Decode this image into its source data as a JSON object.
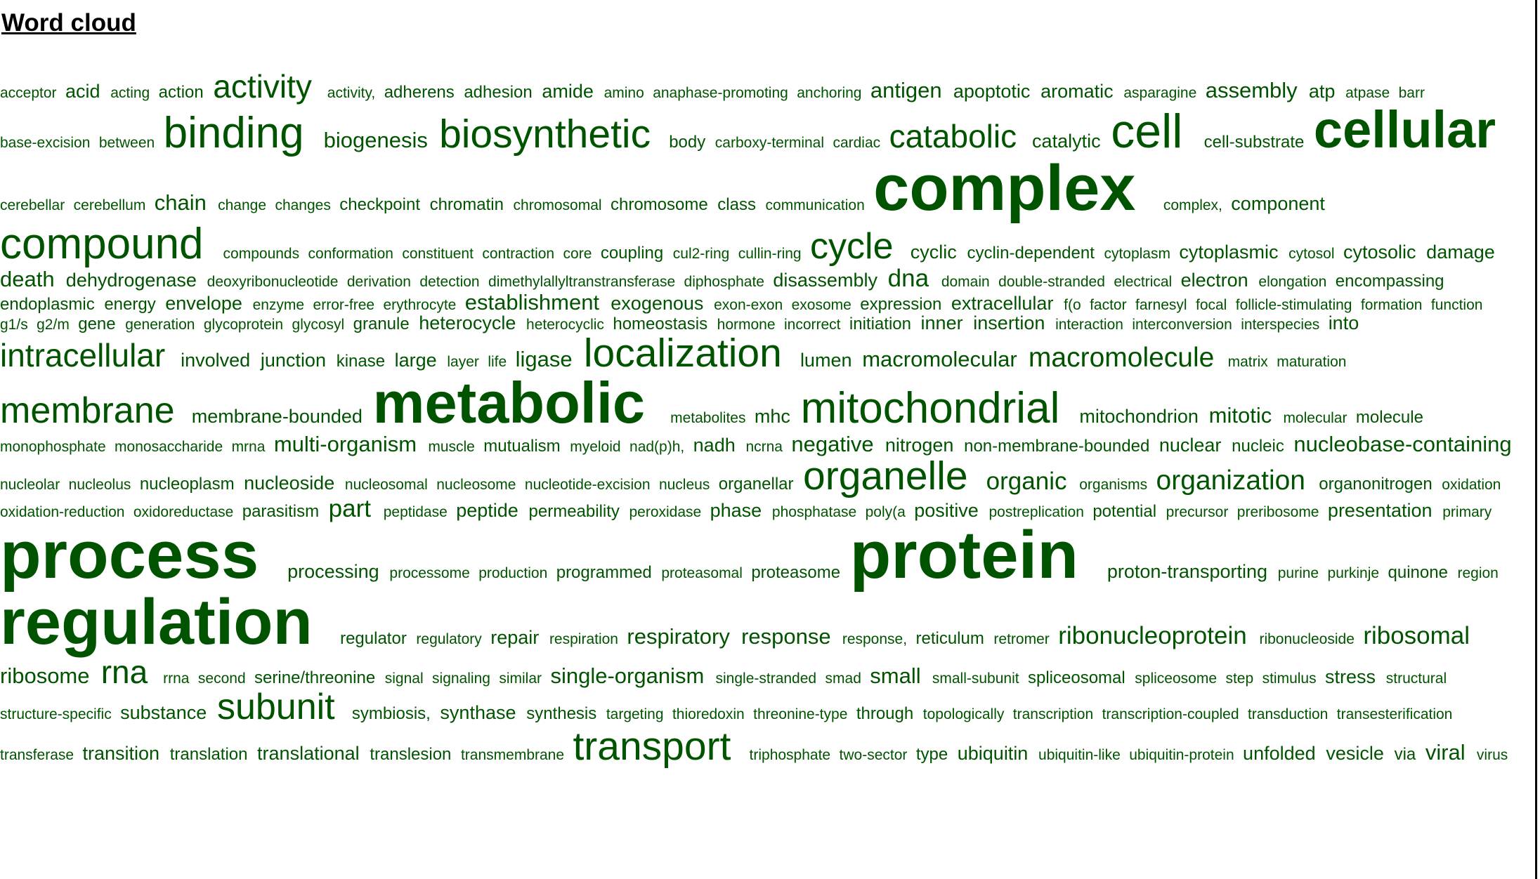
{
  "title": "Word cloud",
  "word_color": "#005400",
  "words": [
    {
      "t": "acceptor",
      "w": 1
    },
    {
      "t": "acid",
      "w": 3
    },
    {
      "t": "acting",
      "w": 1
    },
    {
      "t": "action",
      "w": 2
    },
    {
      "t": "activity",
      "w": 7
    },
    {
      "t": "activity,",
      "w": 1
    },
    {
      "t": "adherens",
      "w": 2
    },
    {
      "t": "adhesion",
      "w": 2
    },
    {
      "t": "amide",
      "w": 3
    },
    {
      "t": "amino",
      "w": 1
    },
    {
      "t": "anaphase-promoting",
      "w": 1
    },
    {
      "t": "anchoring",
      "w": 1
    },
    {
      "t": "antigen",
      "w": 4
    },
    {
      "t": "apoptotic",
      "w": 3
    },
    {
      "t": "aromatic",
      "w": 3
    },
    {
      "t": "asparagine",
      "w": 1
    },
    {
      "t": "assembly",
      "w": 4
    },
    {
      "t": "atp",
      "w": 3
    },
    {
      "t": "atpase",
      "w": 1
    },
    {
      "t": "barr",
      "w": 1
    },
    {
      "t": "base-excision",
      "w": 1
    },
    {
      "t": "between",
      "w": 1
    },
    {
      "t": "binding",
      "w": 10
    },
    {
      "t": "biogenesis",
      "w": 4
    },
    {
      "t": "biosynthetic",
      "w": 9
    },
    {
      "t": "body",
      "w": 2
    },
    {
      "t": "carboxy-terminal",
      "w": 1
    },
    {
      "t": "cardiac",
      "w": 1
    },
    {
      "t": "catabolic",
      "w": 7
    },
    {
      "t": "catalytic",
      "w": 3
    },
    {
      "t": "cell",
      "w": 11
    },
    {
      "t": "cell-substrate",
      "w": 2
    },
    {
      "t": "cellular",
      "w": 12
    },
    {
      "t": "cerebellar",
      "w": 1
    },
    {
      "t": "cerebellum",
      "w": 1
    },
    {
      "t": "chain",
      "w": 4
    },
    {
      "t": "change",
      "w": 1
    },
    {
      "t": "changes",
      "w": 1
    },
    {
      "t": "checkpoint",
      "w": 2
    },
    {
      "t": "chromatin",
      "w": 2
    },
    {
      "t": "chromosomal",
      "w": 1
    },
    {
      "t": "chromosome",
      "w": 2
    },
    {
      "t": "class",
      "w": 2
    },
    {
      "t": "communication",
      "w": 1
    },
    {
      "t": "complex",
      "w": 14
    },
    {
      "t": "complex,",
      "w": 1
    },
    {
      "t": "component",
      "w": 3
    },
    {
      "t": "compound",
      "w": 10
    },
    {
      "t": "compounds",
      "w": 1
    },
    {
      "t": "conformation",
      "w": 1
    },
    {
      "t": "constituent",
      "w": 1
    },
    {
      "t": "contraction",
      "w": 1
    },
    {
      "t": "core",
      "w": 1
    },
    {
      "t": "coupling",
      "w": 2
    },
    {
      "t": "cul2-ring",
      "w": 1
    },
    {
      "t": "cullin-ring",
      "w": 1
    },
    {
      "t": "cycle",
      "w": 8
    },
    {
      "t": "cyclic",
      "w": 3
    },
    {
      "t": "cyclin-dependent",
      "w": 2
    },
    {
      "t": "cytoplasm",
      "w": 1
    },
    {
      "t": "cytoplasmic",
      "w": 3
    },
    {
      "t": "cytosol",
      "w": 1
    },
    {
      "t": "cytosolic",
      "w": 3
    },
    {
      "t": "damage",
      "w": 3
    },
    {
      "t": "death",
      "w": 4
    },
    {
      "t": "dehydrogenase",
      "w": 3
    },
    {
      "t": "deoxyribonucleotide",
      "w": 1
    },
    {
      "t": "derivation",
      "w": 1
    },
    {
      "t": "detection",
      "w": 1
    },
    {
      "t": "dimethylallyltranstransferase",
      "w": 1
    },
    {
      "t": "diphosphate",
      "w": 1
    },
    {
      "t": "disassembly",
      "w": 3
    },
    {
      "t": "dna",
      "w": 5
    },
    {
      "t": "domain",
      "w": 1
    },
    {
      "t": "double-stranded",
      "w": 1
    },
    {
      "t": "electrical",
      "w": 1
    },
    {
      "t": "electron",
      "w": 3
    },
    {
      "t": "elongation",
      "w": 1
    },
    {
      "t": "encompassing",
      "w": 2
    },
    {
      "t": "endoplasmic",
      "w": 2
    },
    {
      "t": "energy",
      "w": 2
    },
    {
      "t": "envelope",
      "w": 3
    },
    {
      "t": "enzyme",
      "w": 1
    },
    {
      "t": "error-free",
      "w": 1
    },
    {
      "t": "erythrocyte",
      "w": 1
    },
    {
      "t": "establishment",
      "w": 4
    },
    {
      "t": "exogenous",
      "w": 3
    },
    {
      "t": "exon-exon",
      "w": 1
    },
    {
      "t": "exosome",
      "w": 1
    },
    {
      "t": "expression",
      "w": 2
    },
    {
      "t": "extracellular",
      "w": 3
    },
    {
      "t": "f(o",
      "w": 1
    },
    {
      "t": "factor",
      "w": 1
    },
    {
      "t": "farnesyl",
      "w": 1
    },
    {
      "t": "focal",
      "w": 1
    },
    {
      "t": "follicle-stimulating",
      "w": 1
    },
    {
      "t": "formation",
      "w": 1
    },
    {
      "t": "function",
      "w": 1
    },
    {
      "t": "g1/s",
      "w": 1
    },
    {
      "t": "g2/m",
      "w": 1
    },
    {
      "t": "gene",
      "w": 2
    },
    {
      "t": "generation",
      "w": 1
    },
    {
      "t": "glycoprotein",
      "w": 1
    },
    {
      "t": "glycosyl",
      "w": 1
    },
    {
      "t": "granule",
      "w": 2
    },
    {
      "t": "heterocycle",
      "w": 3
    },
    {
      "t": "heterocyclic",
      "w": 1
    },
    {
      "t": "homeostasis",
      "w": 2
    },
    {
      "t": "hormone",
      "w": 1
    },
    {
      "t": "incorrect",
      "w": 1
    },
    {
      "t": "initiation",
      "w": 2
    },
    {
      "t": "inner",
      "w": 3
    },
    {
      "t": "insertion",
      "w": 3
    },
    {
      "t": "interaction",
      "w": 1
    },
    {
      "t": "interconversion",
      "w": 1
    },
    {
      "t": "interspecies",
      "w": 1
    },
    {
      "t": "into",
      "w": 3
    },
    {
      "t": "intracellular",
      "w": 7
    },
    {
      "t": "involved",
      "w": 3
    },
    {
      "t": "junction",
      "w": 3
    },
    {
      "t": "kinase",
      "w": 2
    },
    {
      "t": "large",
      "w": 3
    },
    {
      "t": "layer",
      "w": 1
    },
    {
      "t": "life",
      "w": 1
    },
    {
      "t": "ligase",
      "w": 4
    },
    {
      "t": "localization",
      "w": 9
    },
    {
      "t": "lumen",
      "w": 3
    },
    {
      "t": "macromolecular",
      "w": 4
    },
    {
      "t": "macromolecule",
      "w": 6
    },
    {
      "t": "matrix",
      "w": 1
    },
    {
      "t": "maturation",
      "w": 1
    },
    {
      "t": "membrane",
      "w": 8
    },
    {
      "t": "membrane-bounded",
      "w": 3
    },
    {
      "t": "metabolic",
      "w": 13
    },
    {
      "t": "metabolites",
      "w": 1
    },
    {
      "t": "mhc",
      "w": 3
    },
    {
      "t": "mitochondrial",
      "w": 10
    },
    {
      "t": "mitochondrion",
      "w": 3
    },
    {
      "t": "mitotic",
      "w": 4
    },
    {
      "t": "molecular",
      "w": 1
    },
    {
      "t": "molecule",
      "w": 2
    },
    {
      "t": "monophosphate",
      "w": 1
    },
    {
      "t": "monosaccharide",
      "w": 1
    },
    {
      "t": "mrna",
      "w": 1
    },
    {
      "t": "multi-organism",
      "w": 4
    },
    {
      "t": "muscle",
      "w": 1
    },
    {
      "t": "mutualism",
      "w": 2
    },
    {
      "t": "myeloid",
      "w": 1
    },
    {
      "t": "nad(p)h,",
      "w": 1
    },
    {
      "t": "nadh",
      "w": 3
    },
    {
      "t": "ncrna",
      "w": 1
    },
    {
      "t": "negative",
      "w": 4
    },
    {
      "t": "nitrogen",
      "w": 3
    },
    {
      "t": "non-membrane-bounded",
      "w": 2
    },
    {
      "t": "nuclear",
      "w": 3
    },
    {
      "t": "nucleic",
      "w": 2
    },
    {
      "t": "nucleobase-containing",
      "w": 4
    },
    {
      "t": "nucleolar",
      "w": 1
    },
    {
      "t": "nucleolus",
      "w": 1
    },
    {
      "t": "nucleoplasm",
      "w": 2
    },
    {
      "t": "nucleoside",
      "w": 3
    },
    {
      "t": "nucleosomal",
      "w": 1
    },
    {
      "t": "nucleosome",
      "w": 1
    },
    {
      "t": "nucleotide-excision",
      "w": 1
    },
    {
      "t": "nucleus",
      "w": 1
    },
    {
      "t": "organellar",
      "w": 2
    },
    {
      "t": "organelle",
      "w": 9
    },
    {
      "t": "organic",
      "w": 5
    },
    {
      "t": "organisms",
      "w": 1
    },
    {
      "t": "organization",
      "w": 6
    },
    {
      "t": "organonitrogen",
      "w": 2
    },
    {
      "t": "oxidation",
      "w": 1
    },
    {
      "t": "oxidation-reduction",
      "w": 1
    },
    {
      "t": "oxidoreductase",
      "w": 1
    },
    {
      "t": "parasitism",
      "w": 2
    },
    {
      "t": "part",
      "w": 5
    },
    {
      "t": "peptidase",
      "w": 1
    },
    {
      "t": "peptide",
      "w": 3
    },
    {
      "t": "permeability",
      "w": 2
    },
    {
      "t": "peroxidase",
      "w": 1
    },
    {
      "t": "phase",
      "w": 3
    },
    {
      "t": "phosphatase",
      "w": 1
    },
    {
      "t": "poly(a",
      "w": 1
    },
    {
      "t": "positive",
      "w": 3
    },
    {
      "t": "postreplication",
      "w": 1
    },
    {
      "t": "potential",
      "w": 2
    },
    {
      "t": "precursor",
      "w": 1
    },
    {
      "t": "preribosome",
      "w": 1
    },
    {
      "t": "presentation",
      "w": 3
    },
    {
      "t": "primary",
      "w": 1
    },
    {
      "t": "process",
      "w": 15
    },
    {
      "t": "processing",
      "w": 3
    },
    {
      "t": "processome",
      "w": 1
    },
    {
      "t": "production",
      "w": 1
    },
    {
      "t": "programmed",
      "w": 2
    },
    {
      "t": "proteasomal",
      "w": 1
    },
    {
      "t": "proteasome",
      "w": 2
    },
    {
      "t": "protein",
      "w": 15
    },
    {
      "t": "proton-transporting",
      "w": 3
    },
    {
      "t": "purine",
      "w": 1
    },
    {
      "t": "purkinje",
      "w": 1
    },
    {
      "t": "quinone",
      "w": 2
    },
    {
      "t": "region",
      "w": 1
    },
    {
      "t": "regulation",
      "w": 14
    },
    {
      "t": "regulator",
      "w": 2
    },
    {
      "t": "regulatory",
      "w": 1
    },
    {
      "t": "repair",
      "w": 3
    },
    {
      "t": "respiration",
      "w": 1
    },
    {
      "t": "respiratory",
      "w": 4
    },
    {
      "t": "response",
      "w": 4
    },
    {
      "t": "response,",
      "w": 1
    },
    {
      "t": "reticulum",
      "w": 2
    },
    {
      "t": "retromer",
      "w": 1
    },
    {
      "t": "ribonucleoprotein",
      "w": 5
    },
    {
      "t": "ribonucleoside",
      "w": 1
    },
    {
      "t": "ribosomal",
      "w": 5
    },
    {
      "t": "ribosome",
      "w": 4
    },
    {
      "t": "rna",
      "w": 7
    },
    {
      "t": "rrna",
      "w": 1
    },
    {
      "t": "second",
      "w": 1
    },
    {
      "t": "serine/threonine",
      "w": 2
    },
    {
      "t": "signal",
      "w": 1
    },
    {
      "t": "signaling",
      "w": 1
    },
    {
      "t": "similar",
      "w": 1
    },
    {
      "t": "single-organism",
      "w": 4
    },
    {
      "t": "single-stranded",
      "w": 1
    },
    {
      "t": "smad",
      "w": 1
    },
    {
      "t": "small",
      "w": 4
    },
    {
      "t": "small-subunit",
      "w": 1
    },
    {
      "t": "spliceosomal",
      "w": 2
    },
    {
      "t": "spliceosome",
      "w": 1
    },
    {
      "t": "step",
      "w": 1
    },
    {
      "t": "stimulus",
      "w": 1
    },
    {
      "t": "stress",
      "w": 3
    },
    {
      "t": "structural",
      "w": 1
    },
    {
      "t": "structure-specific",
      "w": 1
    },
    {
      "t": "substance",
      "w": 3
    },
    {
      "t": "subunit",
      "w": 8
    },
    {
      "t": "symbiosis,",
      "w": 2
    },
    {
      "t": "synthase",
      "w": 3
    },
    {
      "t": "synthesis",
      "w": 2
    },
    {
      "t": "targeting",
      "w": 1
    },
    {
      "t": "thioredoxin",
      "w": 1
    },
    {
      "t": "threonine-type",
      "w": 1
    },
    {
      "t": "through",
      "w": 2
    },
    {
      "t": "topologically",
      "w": 1
    },
    {
      "t": "transcription",
      "w": 1
    },
    {
      "t": "transcription-coupled",
      "w": 1
    },
    {
      "t": "transduction",
      "w": 1
    },
    {
      "t": "transesterification",
      "w": 1
    },
    {
      "t": "transferase",
      "w": 1
    },
    {
      "t": "transition",
      "w": 3
    },
    {
      "t": "translation",
      "w": 2
    },
    {
      "t": "translational",
      "w": 3
    },
    {
      "t": "translesion",
      "w": 2
    },
    {
      "t": "transmembrane",
      "w": 1
    },
    {
      "t": "transport",
      "w": 9
    },
    {
      "t": "triphosphate",
      "w": 1
    },
    {
      "t": "two-sector",
      "w": 1
    },
    {
      "t": "type",
      "w": 2
    },
    {
      "t": "ubiquitin",
      "w": 3
    },
    {
      "t": "ubiquitin-like",
      "w": 1
    },
    {
      "t": "ubiquitin-protein",
      "w": 1
    },
    {
      "t": "unfolded",
      "w": 3
    },
    {
      "t": "vesicle",
      "w": 3
    },
    {
      "t": "via",
      "w": 2
    },
    {
      "t": "viral",
      "w": 4
    },
    {
      "t": "virus",
      "w": 1
    }
  ]
}
